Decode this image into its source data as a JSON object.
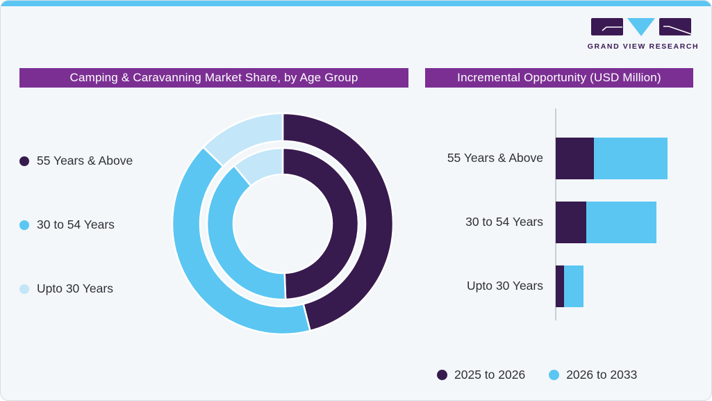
{
  "brand": {
    "logo_text": "GRAND VIEW RESEARCH"
  },
  "colors": {
    "dark_purple": "#371A4E",
    "blue": "#5BC6F2",
    "pale_blue": "#C3E6F8",
    "title_bar_purple": "#7B2F93",
    "card_background": "#F3F7FA",
    "card_border": "#D8DDE3",
    "top_accent_blue": "#5BC6F2",
    "axis_gray": "#C9CED6",
    "text_dark": "#2F3038",
    "logo_purple": "#3B1953"
  },
  "left_panel": {
    "title": "Camping & Caravanning Market Share, by Age Group",
    "legend": [
      {
        "label": "55 Years & Above",
        "color": "#371A4E"
      },
      {
        "label": "30 to 54 Years",
        "color": "#5BC6F2"
      },
      {
        "label": "Upto 30 Years",
        "color": "#C3E6F8"
      }
    ]
  },
  "right_panel": {
    "title": "Incremental Opportunity (USD Million)",
    "legend": [
      {
        "label": "2025 to 2026",
        "color": "#371A4E"
      },
      {
        "label": "2026 to 2033",
        "color": "#5BC6F2"
      }
    ]
  },
  "chart_data": [
    {
      "type": "pie",
      "subtype": "double_ring_donut",
      "title": "Camping & Caravanning Market Share, by Age Group",
      "categories": [
        "55 Years & Above",
        "30 to 54 Years",
        "Upto 30 Years"
      ],
      "unit": "percent share, estimated from arc angles (no numeric labels shown)",
      "series": [
        {
          "name": "inner-ring",
          "values": [
            49.4,
            39.5,
            11.1
          ]
        },
        {
          "name": "outer-ring",
          "values": [
            46.0,
            41.2,
            12.8
          ]
        }
      ],
      "colors": [
        "#371A4E",
        "#5BC6F2",
        "#C3E6F8"
      ],
      "legend_position": "left",
      "start_angle_deg": 0,
      "direction": "clockwise"
    },
    {
      "type": "bar",
      "subtype": "horizontal_stacked",
      "title": "Incremental Opportunity (USD Million)",
      "categories": [
        "55 Years & Above",
        "30 to 54 Years",
        "Upto 30 Years"
      ],
      "unit": "relative bar length (value axis unlabeled)",
      "series": [
        {
          "name": "2025 to 2026",
          "values": [
            55,
            44,
            12
          ],
          "color": "#371A4E"
        },
        {
          "name": "2026 to 2033",
          "values": [
            106,
            101,
            28
          ],
          "color": "#5BC6F2"
        }
      ],
      "legend_position": "bottom",
      "grid": false
    }
  ]
}
